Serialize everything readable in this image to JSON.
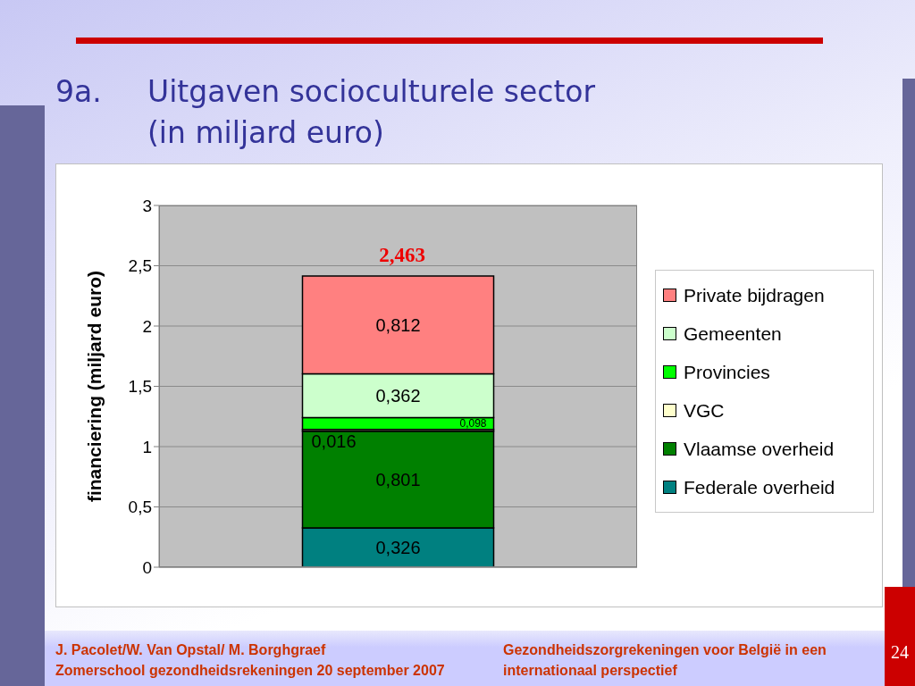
{
  "chart_data": {
    "type": "bar",
    "title": "9a. Uitgaven socioculturele sector",
    "subtitle": "(in miljard euro)",
    "ylabel": "financiering (miljard euro)",
    "categories": [
      null
    ],
    "stacked": true,
    "series": [
      {
        "name": "Federale overheid",
        "color": "#008080",
        "values": [
          0.326
        ],
        "value_labels": [
          "0,326"
        ]
      },
      {
        "name": "Vlaamse overheid",
        "color": "#008000",
        "values": [
          0.801
        ],
        "value_labels": [
          "0,801"
        ]
      },
      {
        "name": "VGC",
        "color": "#ffffcc",
        "values": [
          0.016
        ],
        "value_labels": [
          "0,016"
        ]
      },
      {
        "name": "Provincies",
        "color": "#00ff00",
        "values": [
          0.098
        ],
        "value_labels": [
          "0,098"
        ]
      },
      {
        "name": "Gemeenten",
        "color": "#ccffcc",
        "values": [
          0.362
        ],
        "value_labels": [
          "0,362"
        ]
      },
      {
        "name": "Private bijdragen",
        "color": "#ff8080",
        "values": [
          0.812
        ],
        "value_labels": [
          "0,812"
        ]
      }
    ],
    "ylim": [
      0,
      3
    ],
    "yticks": [
      0,
      {
        "value": 0.5,
        "label": "0,5"
      },
      1,
      {
        "value": 1.5,
        "label": "1,5"
      },
      2,
      {
        "value": 2.5,
        "label": "2,5"
      },
      3
    ],
    "grid": "y",
    "legend": "right",
    "annotations": [
      "2,463",
      "J. Pacolet/W. Van Opstal/ M. Borghgraef",
      "Zomerschool gezondheidsrekeningen 20 september 2007",
      "Gezondheidszorgrekeningen voor België in een internationaal perspectief",
      "24"
    ]
  }
}
